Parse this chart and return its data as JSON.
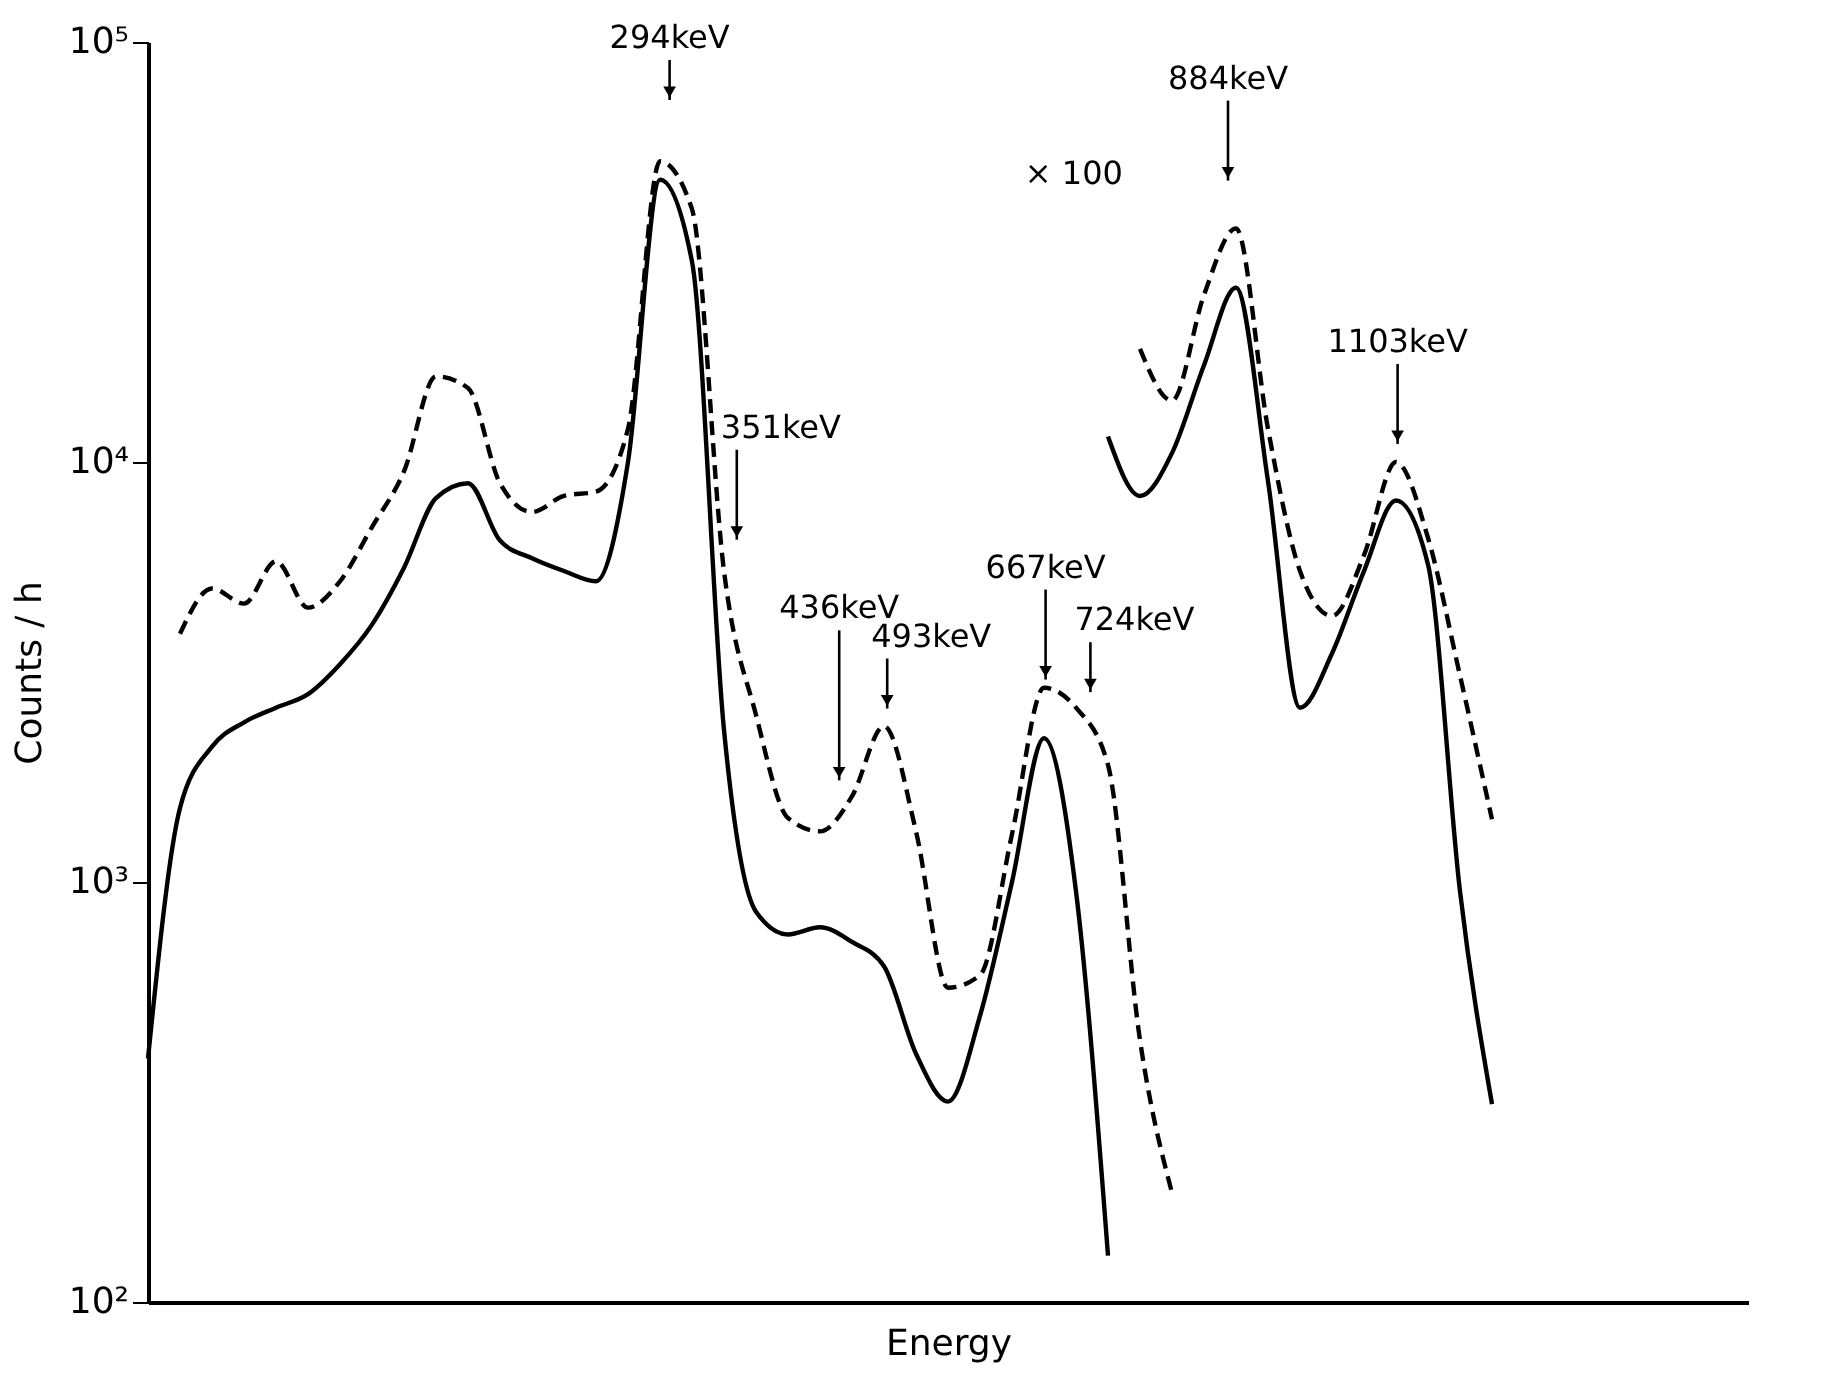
{
  "chart_data": {
    "type": "line",
    "xlabel": "Energy",
    "ylabel": "Counts / h",
    "log": true,
    "grid": false,
    "tick_labels": "y",
    "categories": [
      null,
      null,
      null,
      null,
      null,
      null,
      null,
      null,
      null,
      null,
      null,
      null,
      null,
      null,
      null,
      null,
      null,
      null,
      null,
      null,
      null,
      null,
      null,
      null,
      null,
      null,
      null,
      null,
      null,
      null,
      null,
      null,
      null,
      null,
      null,
      null,
      null,
      null,
      null,
      null,
      null,
      null,
      null,
      null,
      null,
      null,
      null,
      null,
      null,
      null,
      null
    ],
    "ylim": [
      100,
      100000
    ],
    "yticks": [
      {
        "value": 100,
        "label": "10²"
      },
      {
        "value": 1000,
        "label": "10³"
      },
      {
        "value": 10000,
        "label": "10⁴"
      },
      {
        "value": 100000,
        "label": "10⁵"
      }
    ],
    "series": [
      {
        "color": "#000000",
        "line_style": "solid",
        "values": [
          380,
          1500,
          2100,
          2400,
          2600,
          2800,
          3300,
          4100,
          5600,
          8200,
          8900,
          6500,
          5900,
          5500,
          5200,
          10000,
          47000,
          30000,
          2300,
          850,
          750,
          780,
          720,
          630,
          390,
          300,
          480,
          1000,
          2200,
          950,
          129,
          null,
          null,
          null,
          null,
          null,
          null,
          null,
          null,
          null,
          null,
          null,
          null,
          null,
          null,
          null,
          null,
          null,
          null,
          null,
          null
        ]
      },
      {
        "color": "#000000",
        "line_style": "dashed",
        "values": [
          null,
          3900,
          5000,
          4600,
          5800,
          4500,
          5200,
          7000,
          9500,
          16000,
          15000,
          8900,
          7600,
          8300,
          8500,
          12000,
          52000,
          40000,
          5500,
          2500,
          1420,
          1320,
          1600,
          2350,
          1320,
          560,
          600,
          1300,
          2900,
          2600,
          1900,
          420,
          182,
          null,
          null,
          null,
          null,
          null,
          null,
          null,
          null,
          null,
          null,
          null,
          null,
          null,
          null,
          null,
          null,
          null,
          null
        ]
      },
      {
        "color": "#000000",
        "line_style": "solid",
        "values": [
          null,
          null,
          null,
          null,
          null,
          null,
          null,
          null,
          null,
          null,
          null,
          null,
          null,
          null,
          null,
          null,
          null,
          null,
          null,
          null,
          null,
          null,
          null,
          null,
          null,
          null,
          null,
          null,
          null,
          null,
          11500,
          8300,
          10500,
          17000,
          26000,
          9000,
          2600,
          3500,
          5500,
          8100,
          5700,
          950,
          296,
          null,
          null,
          null,
          null,
          null,
          null,
          null,
          null
        ]
      },
      {
        "color": "#000000",
        "line_style": "dashed",
        "values": [
          null,
          null,
          null,
          null,
          null,
          null,
          null,
          null,
          null,
          null,
          null,
          null,
          null,
          null,
          null,
          null,
          null,
          null,
          null,
          null,
          null,
          null,
          null,
          null,
          null,
          null,
          null,
          null,
          null,
          null,
          null,
          18600,
          14000,
          25000,
          36000,
          12000,
          5500,
          4300,
          6000,
          10000,
          6600,
          3100,
          1410,
          null,
          null,
          null,
          null,
          null,
          null,
          null,
          null
        ]
      }
    ],
    "annotations": [
      "294keV",
      "351keV",
      "436keV",
      "493keV",
      "667keV",
      "724keV",
      "884keV",
      "1103keV",
      "× 100"
    ]
  }
}
